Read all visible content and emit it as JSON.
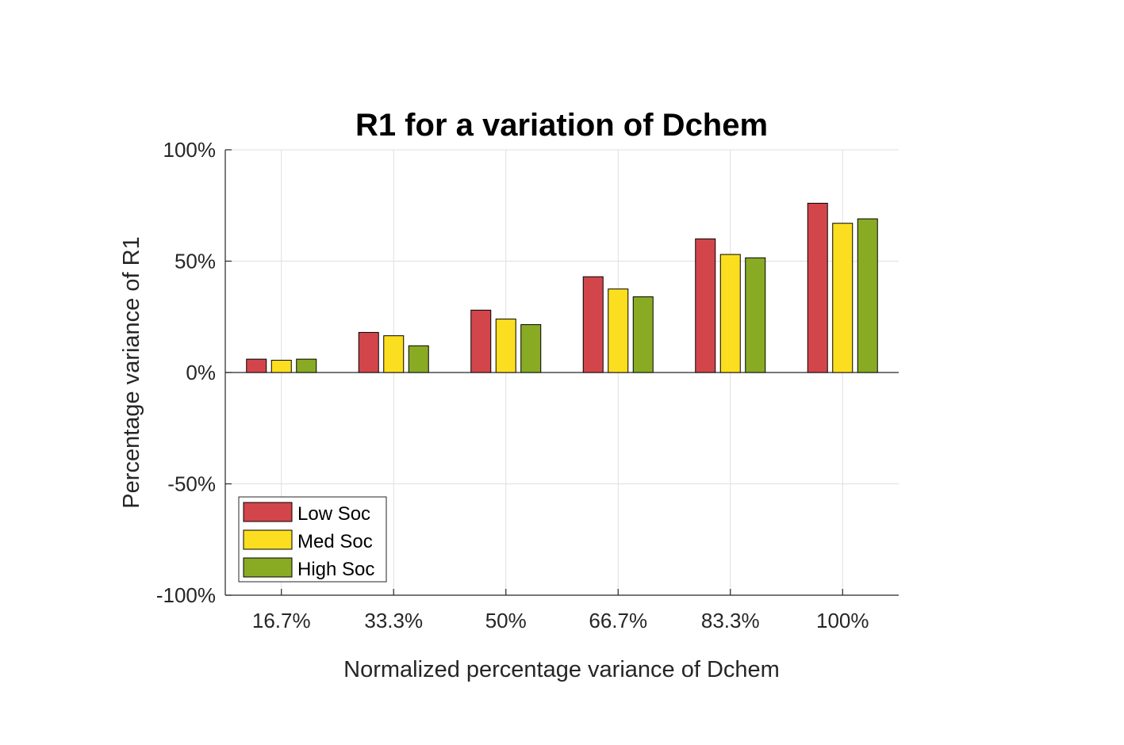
{
  "chart_data": {
    "type": "bar",
    "title": "R1 for a variation of Dchem",
    "xlabel": "Normalized percentage variance of Dchem",
    "ylabel": "Percentage variance of R1",
    "categories": [
      "16.7%",
      "33.3%",
      "50%",
      "66.7%",
      "83.3%",
      "100%"
    ],
    "series": [
      {
        "name": "Low Soc",
        "color": "#d2464b",
        "values": [
          6,
          18,
          28,
          43,
          60,
          76
        ]
      },
      {
        "name": "Med Soc",
        "color": "#fcde20",
        "values": [
          5.5,
          16.5,
          24,
          37.5,
          53,
          67
        ]
      },
      {
        "name": "High Soc",
        "color": "#89ab24",
        "values": [
          6,
          12,
          21.5,
          34,
          51.5,
          69
        ]
      }
    ],
    "ylim": [
      -100,
      100
    ],
    "yticks": [
      -100,
      -50,
      0,
      50,
      100
    ],
    "ytick_labels": [
      "-100%",
      "-50%",
      "0%",
      "50%",
      "100%"
    ],
    "grid": true,
    "legend_position": "bottom-left"
  }
}
